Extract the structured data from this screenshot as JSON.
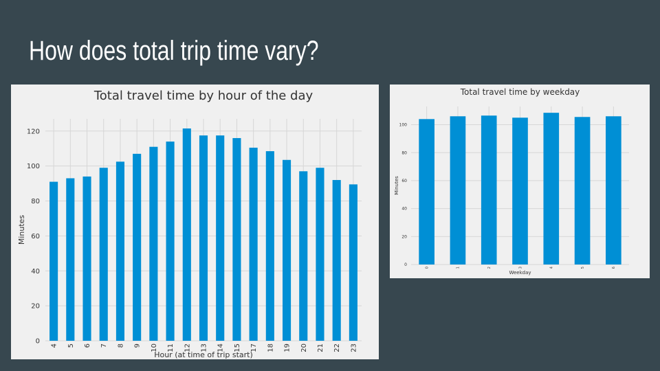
{
  "slide": {
    "title": "How does total trip time vary?"
  },
  "colors": {
    "background": "#37474f",
    "panel": "#f0f0f0",
    "bar": "#008fd5",
    "grid": "#d6d6d6",
    "text": "#333333"
  },
  "chart_data": [
    {
      "id": "hour",
      "type": "bar",
      "title": "Total travel time by hour of the day",
      "xlabel": "Hour (at time of trip start)",
      "ylabel": "Minutes",
      "categories": [
        "4",
        "5",
        "6",
        "7",
        "8",
        "9",
        "10",
        "11",
        "12",
        "13",
        "14",
        "15",
        "17",
        "18",
        "19",
        "20",
        "21",
        "22",
        "23"
      ],
      "values": [
        91,
        93,
        94,
        99,
        102.5,
        107,
        111,
        114,
        121.5,
        117.5,
        117.5,
        116,
        110.5,
        108.5,
        103.5,
        97,
        99,
        92,
        89.5
      ],
      "ylim": [
        0,
        127
      ],
      "yticks": [
        0,
        20,
        40,
        60,
        80,
        100,
        120
      ],
      "grid": true,
      "legend": "none"
    },
    {
      "id": "weekday",
      "type": "bar",
      "title": "Total travel time by weekday",
      "xlabel": "Weekday",
      "ylabel": "Minutes",
      "categories": [
        "0",
        "1",
        "2",
        "3",
        "4",
        "5",
        "6"
      ],
      "values": [
        104,
        106,
        106.5,
        105,
        108.5,
        105.5,
        106
      ],
      "ylim": [
        0,
        113
      ],
      "yticks": [
        0,
        20,
        40,
        60,
        80,
        100
      ],
      "grid": true,
      "legend": "none"
    }
  ]
}
